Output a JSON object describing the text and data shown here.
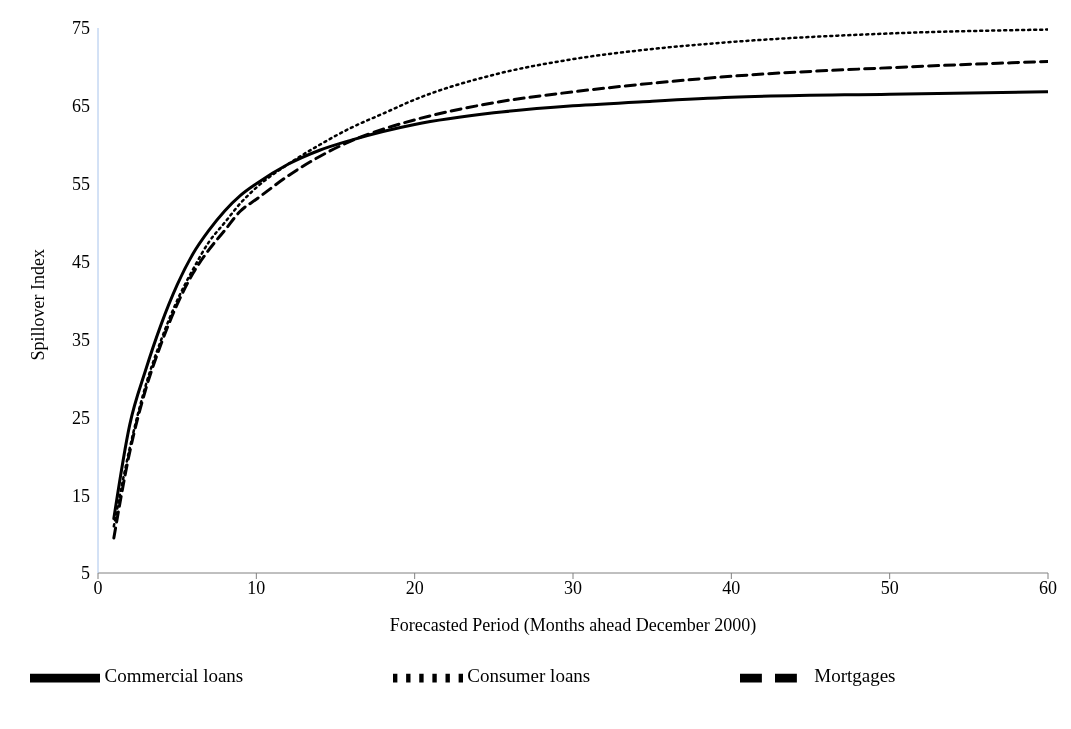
{
  "chart_data": {
    "type": "line",
    "xlabel": "Forecasted Period (Months ahead December 2000)",
    "ylabel": "Spillover Index",
    "x": [
      1,
      2,
      3,
      4,
      5,
      6,
      7,
      8,
      9,
      10,
      12,
      14,
      16,
      18,
      20,
      25,
      30,
      35,
      40,
      50,
      60
    ],
    "xlim": [
      0,
      60
    ],
    "xticks": [
      0,
      10,
      20,
      30,
      40,
      50,
      60
    ],
    "ylim": [
      5,
      75
    ],
    "yticks": [
      5,
      15,
      25,
      35,
      45,
      55,
      65,
      75
    ],
    "grid": false,
    "legend": "bottom",
    "marker": "none",
    "series": [
      {
        "name": "Commercial loans",
        "color": "#000000",
        "line_style": "solid",
        "values": [
          12,
          24,
          31,
          37,
          42,
          46,
          49,
          51.5,
          53.5,
          55,
          57.5,
          59.3,
          60.6,
          61.7,
          62.6,
          64.1,
          65,
          65.6,
          66.1,
          66.5,
          66.8
        ]
      },
      {
        "name": "Consumer loans",
        "color": "#000000",
        "line_style": "dotted",
        "values": [
          11,
          21,
          29,
          35,
          40,
          44,
          47.5,
          50,
          52.5,
          54.5,
          57.5,
          60,
          62.2,
          64,
          65.8,
          69,
          71,
          72.3,
          73.2,
          74.3,
          74.8
        ]
      },
      {
        "name": "Mortgages",
        "color": "#000000",
        "line_style": "dashed",
        "values": [
          9.5,
          20.5,
          28.5,
          34.5,
          39.5,
          43.5,
          46.5,
          49,
          51.5,
          53,
          56,
          58.5,
          60.5,
          62,
          63.2,
          65.4,
          66.8,
          67.9,
          68.8,
          69.9,
          70.7
        ]
      }
    ]
  }
}
